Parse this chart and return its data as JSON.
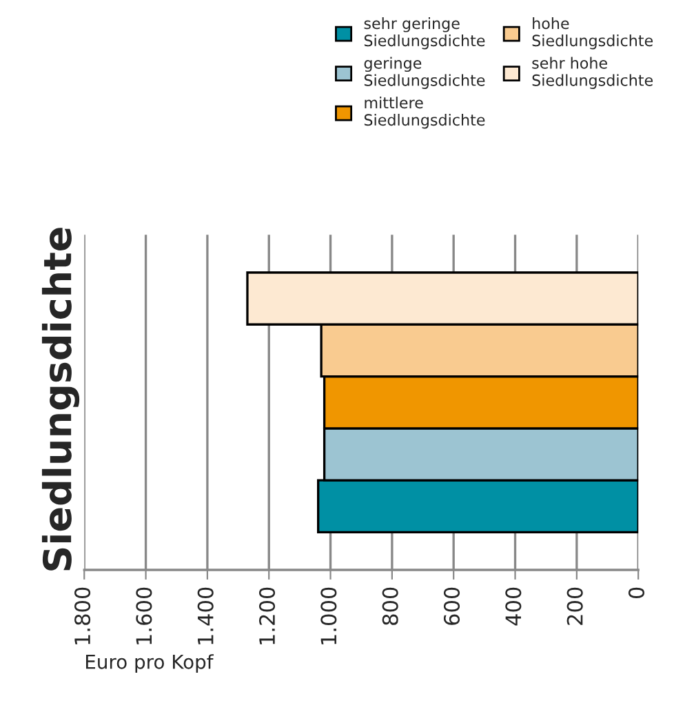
{
  "chart_data": {
    "type": "bar",
    "orientation": "horizontal",
    "title": "Siedlungsdichte",
    "xlabel": "Euro pro Kopf",
    "categories": [
      null
    ],
    "series": [
      {
        "name": "sehr geringe\nSiedlungsdichte",
        "color": "#0090a4",
        "values": [
          1040
        ]
      },
      {
        "name": "geringe\nSiedlungsdichte",
        "color": "#9cc4d2",
        "values": [
          1020
        ]
      },
      {
        "name": "mittlere\nSiedlungsdichte",
        "color": "#f09600",
        "values": [
          1020
        ]
      },
      {
        "name": "hohe\nSiedlungsdichte",
        "color": "#f9cb90",
        "values": [
          1030
        ]
      },
      {
        "name": "sehr hohe\nSiedlungsdichte",
        "color": "#fde9d2",
        "values": [
          1270
        ]
      }
    ],
    "xlim": [
      1800,
      0
    ],
    "xticks": [
      {
        "value": 1800,
        "label": "1.800"
      },
      {
        "value": 1600,
        "label": "1.600"
      },
      {
        "value": 1400,
        "label": "1.400"
      },
      {
        "value": 1200,
        "label": "1.200"
      },
      {
        "value": 1000,
        "label": "1.000"
      },
      800,
      600,
      400,
      200,
      0
    ],
    "grid": "x",
    "legend": "top right"
  }
}
